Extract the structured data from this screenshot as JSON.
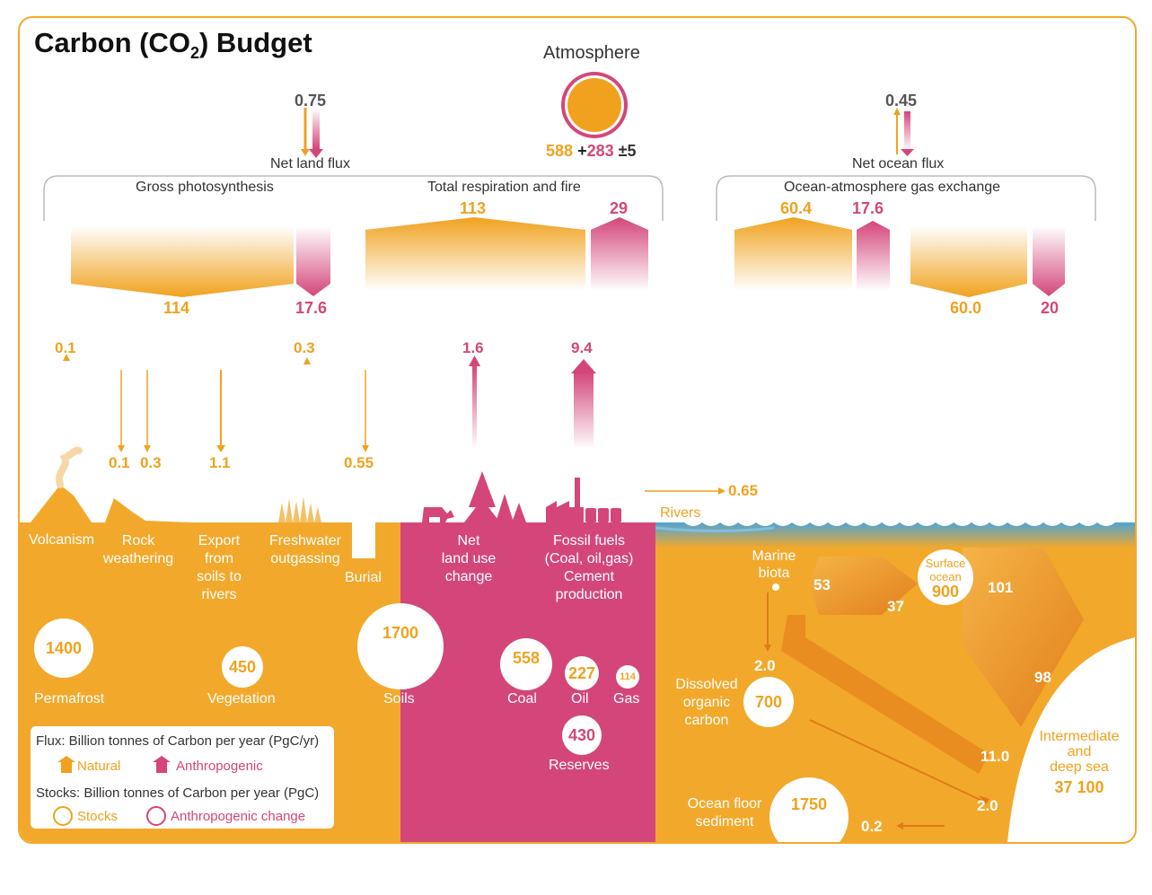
{
  "title": {
    "main": "Carbon (CO",
    "sub": "2",
    "end": ") Budget"
  },
  "atmosphere": {
    "label": "Atmosphere",
    "natural": "588",
    "plus": "+",
    "anthro": "283",
    "pm": "±5"
  },
  "net_land_flux": {
    "value": "0.75",
    "label": "Net land flux"
  },
  "net_ocean_flux": {
    "value": "0.45",
    "label": "Net ocean flux"
  },
  "gross_photosynthesis": {
    "label": "Gross photosynthesis",
    "natural": "114",
    "anthro": "17.6"
  },
  "respiration": {
    "label": "Total respiration and fire",
    "natural": "113",
    "anthro": "29"
  },
  "ocean_exchange": {
    "label": "Ocean-atmosphere gas exchange",
    "up_natural": "60.4",
    "up_anthro": "17.6",
    "down_natural": "60.0",
    "down_anthro": "20"
  },
  "fluxes": {
    "volcanism": "0.1",
    "rock_weathering_a": "0.1",
    "rock_weathering_b": "0.3",
    "export_soils": "1.1",
    "freshwater": "0.3",
    "burial": "0.55",
    "land_use": "1.6",
    "fossil": "9.4",
    "rivers": "0.65"
  },
  "land_labels": {
    "volcanism": "Volcanism",
    "rock": [
      "Rock",
      "weathering"
    ],
    "export": [
      "Export",
      "from",
      "soils to",
      "rivers"
    ],
    "freshwater": [
      "Freshwater",
      "outgassing"
    ],
    "burial": "Burial",
    "land_use": [
      "Net",
      "land use",
      "change"
    ],
    "fossil": [
      "Fossil fuels",
      "(Coal, oil,gas)",
      "Cement",
      "production"
    ],
    "rivers": "Rivers"
  },
  "stocks": {
    "permafrost": {
      "value": "1400",
      "label": "Permafrost"
    },
    "vegetation": {
      "value": "450",
      "label": "Vegetation"
    },
    "soils": {
      "value": "1700",
      "label": "Soils"
    },
    "coal": {
      "value": "558",
      "label": "Coal"
    },
    "oil": {
      "value": "227",
      "label": "Oil"
    },
    "gas": {
      "value": "114",
      "label": "Gas"
    },
    "reserves": {
      "value": "430",
      "label": "Reserves"
    }
  },
  "ocean": {
    "marine_biota": [
      "Marine",
      "biota"
    ],
    "surface": {
      "label": [
        "Surface",
        "ocean"
      ],
      "value": "900"
    },
    "f53": "53",
    "f37": "37",
    "f101": "101",
    "f98": "98",
    "f2_0a": "2.0",
    "doc": {
      "label": [
        "Dissolved",
        "organic",
        "carbon"
      ],
      "value": "700"
    },
    "f11": "11.0",
    "f2_0b": "2.0",
    "f0_2": "0.2",
    "sediment": {
      "label": [
        "Ocean floor",
        "sediment"
      ],
      "value": "1750"
    },
    "deep": {
      "label": [
        "Intermediate",
        "and",
        "deep sea"
      ],
      "value": "37 100"
    }
  },
  "legend": {
    "flux_title": "Flux: Billion tonnes of Carbon per year (PgC/yr)",
    "natural": "Natural",
    "anthropogenic": "Anthropogenic",
    "stock_title": "Stocks: Billion tonnes of Carbon per year (PgC)",
    "stocks": "Stocks",
    "anthro_change": "Anthropogenic change"
  },
  "colors": {
    "natural": "#f0a21e",
    "anthropogenic": "#d4467a",
    "ocean": "#f2a92b",
    "sky_ocean": "#5aa9d6"
  }
}
